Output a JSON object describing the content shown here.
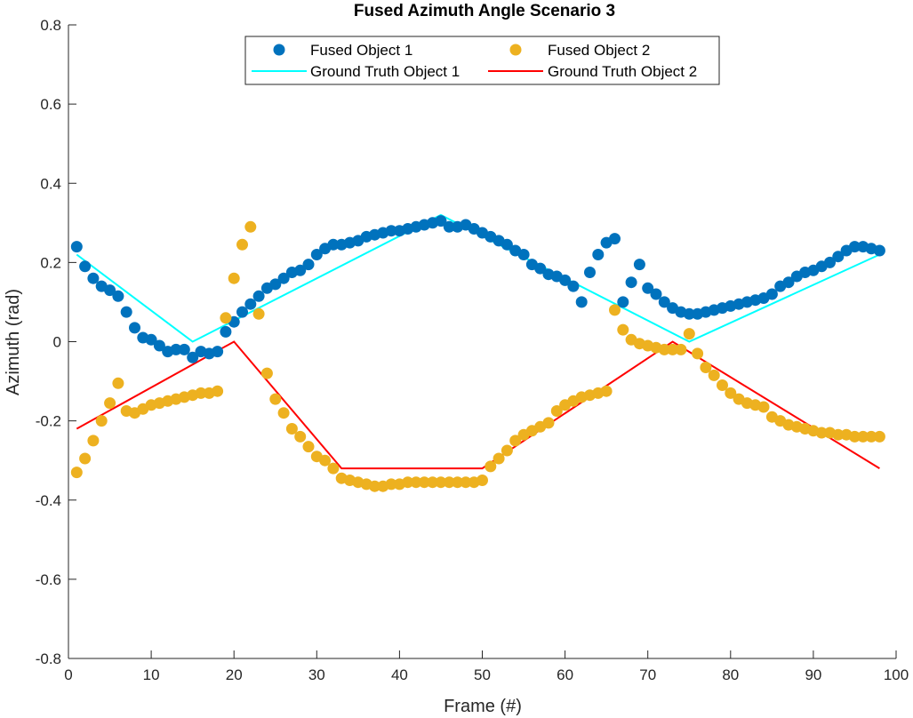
{
  "chart_data": {
    "type": "scatter",
    "title": "Fused Azimuth Angle Scenario 3",
    "xlabel": "Frame (#)",
    "ylabel": "Azimuth (rad)",
    "xlim": [
      0,
      100
    ],
    "ylim": [
      -0.8,
      0.8
    ],
    "xticks": [
      0,
      10,
      20,
      30,
      40,
      50,
      60,
      70,
      80,
      90,
      100
    ],
    "xtick_labels": [
      "0",
      "10",
      "20",
      "30",
      "40",
      "50",
      "60",
      "70",
      "80",
      "90",
      "100"
    ],
    "yticks": [
      -0.8,
      -0.6,
      -0.4,
      -0.2,
      0,
      0.2,
      0.4,
      0.6,
      0.8
    ],
    "ytick_labels": [
      "-0.8",
      "-0.6",
      "-0.4",
      "-0.2",
      "0",
      "0.2",
      "0.4",
      "0.6",
      "0.8"
    ],
    "grid": false,
    "legend_position": "top-center",
    "series": [
      {
        "name": "Fused Object 1",
        "kind": "markers",
        "color": "#0072BD",
        "x": [
          1,
          2,
          3,
          4,
          5,
          6,
          7,
          8,
          9,
          10,
          11,
          12,
          13,
          14,
          15,
          16,
          17,
          18,
          19,
          20,
          21,
          22,
          23,
          24,
          25,
          26,
          27,
          28,
          29,
          30,
          31,
          32,
          33,
          34,
          35,
          36,
          37,
          38,
          39,
          40,
          41,
          42,
          43,
          44,
          45,
          46,
          47,
          48,
          49,
          50,
          51,
          52,
          53,
          54,
          55,
          56,
          57,
          58,
          59,
          60,
          61,
          62,
          63,
          64,
          65,
          66,
          67,
          68,
          69,
          70,
          71,
          72,
          73,
          74,
          75,
          76,
          77,
          78,
          79,
          80,
          81,
          82,
          83,
          84,
          85,
          86,
          87,
          88,
          89,
          90,
          91,
          92,
          93,
          94,
          95,
          96,
          97,
          98
        ],
        "y": [
          0.24,
          0.19,
          0.16,
          0.14,
          0.13,
          0.115,
          0.075,
          0.035,
          0.01,
          0.005,
          -0.01,
          -0.025,
          -0.02,
          -0.02,
          -0.04,
          -0.025,
          -0.03,
          -0.025,
          0.025,
          0.05,
          0.075,
          0.095,
          0.115,
          0.135,
          0.145,
          0.16,
          0.175,
          0.18,
          0.195,
          0.22,
          0.235,
          0.245,
          0.245,
          0.25,
          0.255,
          0.265,
          0.27,
          0.275,
          0.28,
          0.28,
          0.285,
          0.29,
          0.295,
          0.3,
          0.305,
          0.29,
          0.29,
          0.295,
          0.285,
          0.275,
          0.265,
          0.255,
          0.245,
          0.23,
          0.22,
          0.195,
          0.185,
          0.17,
          0.165,
          0.155,
          0.14,
          0.1,
          0.175,
          0.22,
          0.25,
          0.26,
          0.1,
          0.15,
          0.195,
          0.135,
          0.12,
          0.1,
          0.085,
          0.075,
          0.07,
          0.07,
          0.075,
          0.08,
          0.085,
          0.09,
          0.095,
          0.1,
          0.105,
          0.11,
          0.12,
          0.14,
          0.15,
          0.165,
          0.175,
          0.18,
          0.19,
          0.2,
          0.215,
          0.23,
          0.24,
          0.24,
          0.235,
          0.23
        ]
      },
      {
        "name": "Fused Object 2",
        "kind": "markers",
        "color": "#EDB120",
        "x": [
          1,
          2,
          3,
          4,
          5,
          6,
          7,
          8,
          9,
          10,
          11,
          12,
          13,
          14,
          15,
          16,
          17,
          18,
          19,
          20,
          21,
          22,
          23,
          24,
          25,
          26,
          27,
          28,
          29,
          30,
          31,
          32,
          33,
          34,
          35,
          36,
          37,
          38,
          39,
          40,
          41,
          42,
          43,
          44,
          45,
          46,
          47,
          48,
          49,
          50,
          51,
          52,
          53,
          54,
          55,
          56,
          57,
          58,
          59,
          60,
          61,
          62,
          63,
          64,
          65,
          66,
          67,
          68,
          69,
          70,
          71,
          72,
          73,
          74,
          75,
          76,
          77,
          78,
          79,
          80,
          81,
          82,
          83,
          84,
          85,
          86,
          87,
          88,
          89,
          90,
          91,
          92,
          93,
          94,
          95,
          96,
          97,
          98
        ],
        "y": [
          -0.33,
          -0.295,
          -0.25,
          -0.2,
          -0.155,
          -0.105,
          -0.175,
          -0.18,
          -0.17,
          -0.16,
          -0.155,
          -0.15,
          -0.145,
          -0.14,
          -0.135,
          -0.13,
          -0.13,
          -0.125,
          0.06,
          0.16,
          0.245,
          0.29,
          0.07,
          -0.08,
          -0.145,
          -0.18,
          -0.22,
          -0.24,
          -0.265,
          -0.29,
          -0.3,
          -0.32,
          -0.345,
          -0.35,
          -0.355,
          -0.36,
          -0.365,
          -0.365,
          -0.36,
          -0.36,
          -0.355,
          -0.355,
          -0.355,
          -0.355,
          -0.355,
          -0.355,
          -0.355,
          -0.355,
          -0.355,
          -0.35,
          -0.315,
          -0.295,
          -0.275,
          -0.25,
          -0.235,
          -0.225,
          -0.215,
          -0.205,
          -0.175,
          -0.16,
          -0.15,
          -0.14,
          -0.135,
          -0.13,
          -0.125,
          0.08,
          0.03,
          0.005,
          -0.005,
          -0.01,
          -0.015,
          -0.02,
          -0.02,
          -0.02,
          0.02,
          -0.03,
          -0.065,
          -0.085,
          -0.11,
          -0.13,
          -0.145,
          -0.155,
          -0.16,
          -0.165,
          -0.19,
          -0.2,
          -0.21,
          -0.215,
          -0.22,
          -0.225,
          -0.23,
          -0.23,
          -0.235,
          -0.235,
          -0.24,
          -0.24,
          -0.24,
          -0.24
        ]
      },
      {
        "name": "Ground Truth Object 1",
        "kind": "line",
        "color": "#00FFFF",
        "x": [
          1,
          15,
          45,
          75,
          98
        ],
        "y": [
          0.22,
          0.0,
          0.32,
          0.0,
          0.22
        ]
      },
      {
        "name": "Ground Truth Object 2",
        "kind": "line",
        "color": "#FF0000",
        "x": [
          1,
          20,
          33,
          50,
          73,
          98
        ],
        "y": [
          -0.22,
          0.0,
          -0.32,
          -0.32,
          0.0,
          -0.32
        ]
      }
    ]
  }
}
